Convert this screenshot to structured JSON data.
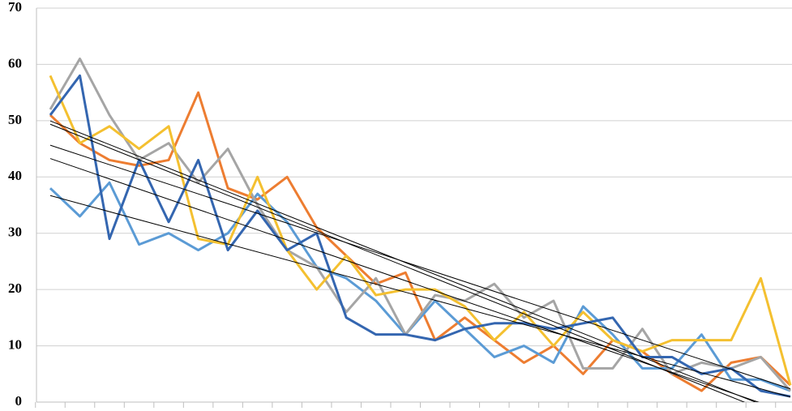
{
  "chart_data": {
    "type": "line",
    "categories": [
      null,
      null,
      null,
      null,
      null,
      null,
      null,
      null,
      null,
      null,
      null,
      null,
      null,
      null,
      null,
      null,
      null,
      null,
      null,
      null,
      null,
      null,
      null,
      null,
      null,
      null
    ],
    "series": [
      {
        "color": "#ed7d31",
        "values": [
          51,
          46,
          43,
          42,
          43,
          55,
          38,
          36,
          40,
          31,
          26,
          21,
          23,
          11,
          15,
          11,
          7,
          10,
          5,
          11,
          9,
          5,
          2,
          7,
          8,
          3
        ]
      },
      {
        "color": "#5b9bd5",
        "values": [
          38,
          33,
          39,
          28,
          30,
          27,
          30,
          37,
          32,
          24,
          22,
          18,
          12,
          18,
          13,
          8,
          10,
          7,
          17,
          12,
          6,
          6,
          12,
          4,
          4,
          2
        ]
      },
      {
        "color": "#a5a5a5",
        "values": [
          52,
          61,
          51,
          43,
          46,
          39,
          45,
          35,
          27,
          24,
          16,
          22,
          12,
          19,
          18,
          21,
          15,
          18,
          6,
          6,
          13,
          5,
          7,
          6,
          8,
          2
        ]
      },
      {
        "color": "#f4c030",
        "values": [
          58,
          46,
          49,
          45,
          49,
          29,
          28,
          40,
          27,
          20,
          26,
          19,
          20,
          20,
          17,
          11,
          16,
          10,
          16,
          11,
          9,
          11,
          11,
          11,
          22,
          3
        ]
      },
      {
        "color": "#3466b0",
        "values": [
          51,
          58,
          29,
          43,
          32,
          43,
          27,
          34,
          27,
          30,
          15,
          12,
          12,
          11,
          13,
          14,
          14,
          13,
          14,
          15,
          8,
          8,
          5,
          6,
          2,
          1
        ]
      }
    ],
    "trendline": true,
    "ylim": [
      0,
      70
    ],
    "yticks": [
      0,
      10,
      20,
      30,
      40,
      50,
      60,
      70
    ],
    "grid": true
  }
}
